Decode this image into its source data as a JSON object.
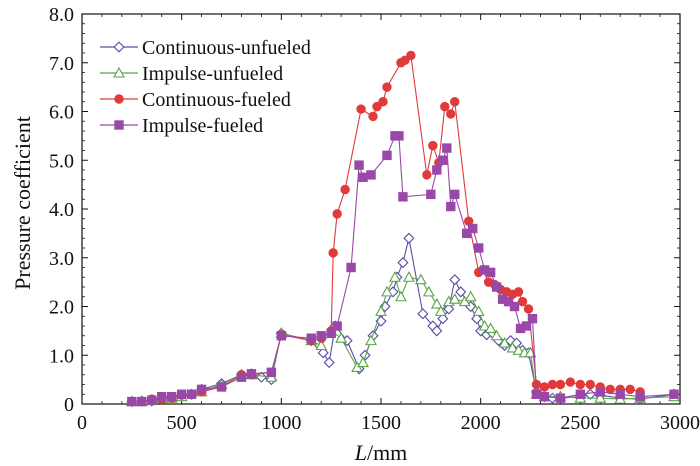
{
  "chart_data": {
    "type": "line",
    "title": "",
    "xlabel_italic": "L",
    "xlabel_rest": "/mm",
    "ylabel": "Pressure coefficient",
    "xlim": [
      0,
      3000
    ],
    "ylim": [
      0,
      8
    ],
    "xticks": [
      "0",
      "500",
      "1000",
      "1500",
      "2000",
      "2500",
      "3000"
    ],
    "yticks": [
      "0",
      "1.0",
      "2.0",
      "3.0",
      "4.0",
      "5.0",
      "6.0",
      "7.0",
      "8.0"
    ],
    "grid": false,
    "legend_position": "top-left",
    "series": [
      {
        "name": "Continuous-unfueled",
        "color": "#5a4aa8",
        "marker": "diamond-open",
        "points": [
          [
            250,
            0.05
          ],
          [
            300,
            0.06
          ],
          [
            350,
            0.06
          ],
          [
            400,
            0.12
          ],
          [
            450,
            0.13
          ],
          [
            500,
            0.16
          ],
          [
            550,
            0.2
          ],
          [
            600,
            0.3
          ],
          [
            700,
            0.42
          ],
          [
            800,
            0.6
          ],
          [
            850,
            0.62
          ],
          [
            900,
            0.55
          ],
          [
            950,
            0.5
          ],
          [
            1000,
            1.45
          ],
          [
            1150,
            1.3
          ],
          [
            1180,
            1.25
          ],
          [
            1210,
            1.05
          ],
          [
            1240,
            0.85
          ],
          [
            1270,
            1.6
          ],
          [
            1330,
            1.3
          ],
          [
            1390,
            0.72
          ],
          [
            1420,
            1.0
          ],
          [
            1460,
            1.4
          ],
          [
            1500,
            1.7
          ],
          [
            1520,
            2.0
          ],
          [
            1560,
            2.3
          ],
          [
            1580,
            2.6
          ],
          [
            1610,
            2.9
          ],
          [
            1640,
            3.4
          ],
          [
            1710,
            1.85
          ],
          [
            1760,
            1.6
          ],
          [
            1780,
            1.5
          ],
          [
            1810,
            1.75
          ],
          [
            1840,
            1.95
          ],
          [
            1870,
            2.55
          ],
          [
            1900,
            2.3
          ],
          [
            1950,
            2.0
          ],
          [
            1980,
            1.75
          ],
          [
            2000,
            1.5
          ],
          [
            2030,
            1.42
          ],
          [
            2060,
            1.45
          ],
          [
            2090,
            1.3
          ],
          [
            2120,
            1.2
          ],
          [
            2150,
            1.3
          ],
          [
            2180,
            1.25
          ],
          [
            2210,
            1.1
          ],
          [
            2240,
            1.05
          ],
          [
            2280,
            0.25
          ],
          [
            2320,
            0.15
          ],
          [
            2360,
            0.12
          ],
          [
            2400,
            0.12
          ],
          [
            2500,
            0.15
          ],
          [
            2550,
            0.2
          ],
          [
            2600,
            0.18
          ],
          [
            2700,
            0.12
          ],
          [
            2800,
            0.1
          ],
          [
            2970,
            0.2
          ]
        ]
      },
      {
        "name": "Impulse-unfueled",
        "color": "#5aa34a",
        "marker": "triangle-open",
        "points": [
          [
            250,
            0.05
          ],
          [
            300,
            0.05
          ],
          [
            350,
            0.07
          ],
          [
            400,
            0.1
          ],
          [
            450,
            0.12
          ],
          [
            500,
            0.15
          ],
          [
            600,
            0.25
          ],
          [
            700,
            0.4
          ],
          [
            800,
            0.6
          ],
          [
            850,
            0.6
          ],
          [
            950,
            0.55
          ],
          [
            1000,
            1.45
          ],
          [
            1150,
            1.3
          ],
          [
            1200,
            1.2
          ],
          [
            1250,
            1.5
          ],
          [
            1300,
            1.35
          ],
          [
            1380,
            0.75
          ],
          [
            1410,
            0.85
          ],
          [
            1450,
            1.3
          ],
          [
            1500,
            1.9
          ],
          [
            1530,
            2.3
          ],
          [
            1570,
            2.6
          ],
          [
            1600,
            2.2
          ],
          [
            1640,
            2.6
          ],
          [
            1700,
            2.55
          ],
          [
            1740,
            2.3
          ],
          [
            1780,
            2.05
          ],
          [
            1800,
            1.9
          ],
          [
            1840,
            2.1
          ],
          [
            1870,
            2.15
          ],
          [
            1920,
            2.1
          ],
          [
            1950,
            2.2
          ],
          [
            1990,
            1.9
          ],
          [
            2020,
            1.6
          ],
          [
            2050,
            1.55
          ],
          [
            2080,
            1.4
          ],
          [
            2120,
            1.25
          ],
          [
            2160,
            1.15
          ],
          [
            2190,
            1.1
          ],
          [
            2220,
            1.05
          ],
          [
            2250,
            1.05
          ],
          [
            2280,
            0.2
          ],
          [
            2320,
            0.15
          ],
          [
            2400,
            0.15
          ],
          [
            2500,
            0.12
          ],
          [
            2600,
            0.12
          ],
          [
            2700,
            0.1
          ],
          [
            2800,
            0.12
          ],
          [
            2970,
            0.15
          ]
        ]
      },
      {
        "name": "Continuous-fueled",
        "color": "#e03a3a",
        "marker": "circle-filled",
        "points": [
          [
            250,
            0.05
          ],
          [
            300,
            0.05
          ],
          [
            350,
            0.1
          ],
          [
            400,
            0.1
          ],
          [
            450,
            0.12
          ],
          [
            500,
            0.18
          ],
          [
            550,
            0.2
          ],
          [
            600,
            0.25
          ],
          [
            700,
            0.35
          ],
          [
            800,
            0.6
          ],
          [
            850,
            0.6
          ],
          [
            950,
            0.65
          ],
          [
            1000,
            1.42
          ],
          [
            1150,
            1.3
          ],
          [
            1200,
            1.35
          ],
          [
            1250,
            1.5
          ],
          [
            1260,
            3.1
          ],
          [
            1280,
            3.9
          ],
          [
            1320,
            4.4
          ],
          [
            1400,
            6.05
          ],
          [
            1460,
            5.9
          ],
          [
            1480,
            6.1
          ],
          [
            1510,
            6.2
          ],
          [
            1530,
            6.5
          ],
          [
            1600,
            7.0
          ],
          [
            1620,
            7.05
          ],
          [
            1650,
            7.15
          ],
          [
            1730,
            4.7
          ],
          [
            1760,
            5.3
          ],
          [
            1790,
            4.95
          ],
          [
            1820,
            6.1
          ],
          [
            1850,
            5.95
          ],
          [
            1870,
            6.2
          ],
          [
            1940,
            3.75
          ],
          [
            1990,
            2.7
          ],
          [
            2010,
            2.75
          ],
          [
            2040,
            2.5
          ],
          [
            2070,
            2.45
          ],
          [
            2100,
            2.35
          ],
          [
            2130,
            2.3
          ],
          [
            2160,
            2.25
          ],
          [
            2190,
            2.3
          ],
          [
            2210,
            2.1
          ],
          [
            2240,
            1.95
          ],
          [
            2280,
            0.4
          ],
          [
            2320,
            0.35
          ],
          [
            2360,
            0.4
          ],
          [
            2400,
            0.4
          ],
          [
            2450,
            0.45
          ],
          [
            2500,
            0.4
          ],
          [
            2550,
            0.4
          ],
          [
            2600,
            0.35
          ],
          [
            2650,
            0.3
          ],
          [
            2700,
            0.3
          ],
          [
            2750,
            0.3
          ],
          [
            2800,
            0.25
          ]
        ]
      },
      {
        "name": "Impulse-fueled",
        "color": "#9a48a8",
        "marker": "square-filled",
        "points": [
          [
            250,
            0.05
          ],
          [
            300,
            0.05
          ],
          [
            350,
            0.08
          ],
          [
            400,
            0.15
          ],
          [
            450,
            0.15
          ],
          [
            500,
            0.2
          ],
          [
            550,
            0.2
          ],
          [
            600,
            0.3
          ],
          [
            700,
            0.35
          ],
          [
            800,
            0.55
          ],
          [
            850,
            0.62
          ],
          [
            950,
            0.65
          ],
          [
            1000,
            1.4
          ],
          [
            1150,
            1.35
          ],
          [
            1200,
            1.4
          ],
          [
            1250,
            1.45
          ],
          [
            1280,
            1.6
          ],
          [
            1350,
            2.8
          ],
          [
            1390,
            4.9
          ],
          [
            1410,
            4.65
          ],
          [
            1450,
            4.7
          ],
          [
            1530,
            5.1
          ],
          [
            1570,
            5.5
          ],
          [
            1590,
            5.5
          ],
          [
            1610,
            4.25
          ],
          [
            1750,
            4.3
          ],
          [
            1780,
            4.8
          ],
          [
            1810,
            5.0
          ],
          [
            1830,
            5.25
          ],
          [
            1850,
            4.05
          ],
          [
            1870,
            4.3
          ],
          [
            1930,
            3.5
          ],
          [
            1960,
            3.6
          ],
          [
            1990,
            3.2
          ],
          [
            2020,
            2.75
          ],
          [
            2050,
            2.7
          ],
          [
            2080,
            2.4
          ],
          [
            2110,
            2.15
          ],
          [
            2140,
            2.1
          ],
          [
            2170,
            2.0
          ],
          [
            2200,
            1.55
          ],
          [
            2230,
            1.6
          ],
          [
            2260,
            1.75
          ],
          [
            2280,
            0.2
          ],
          [
            2320,
            0.15
          ],
          [
            2400,
            0.12
          ],
          [
            2500,
            0.2
          ],
          [
            2600,
            0.25
          ],
          [
            2700,
            0.2
          ],
          [
            2800,
            0.15
          ],
          [
            2970,
            0.2
          ]
        ]
      }
    ]
  }
}
